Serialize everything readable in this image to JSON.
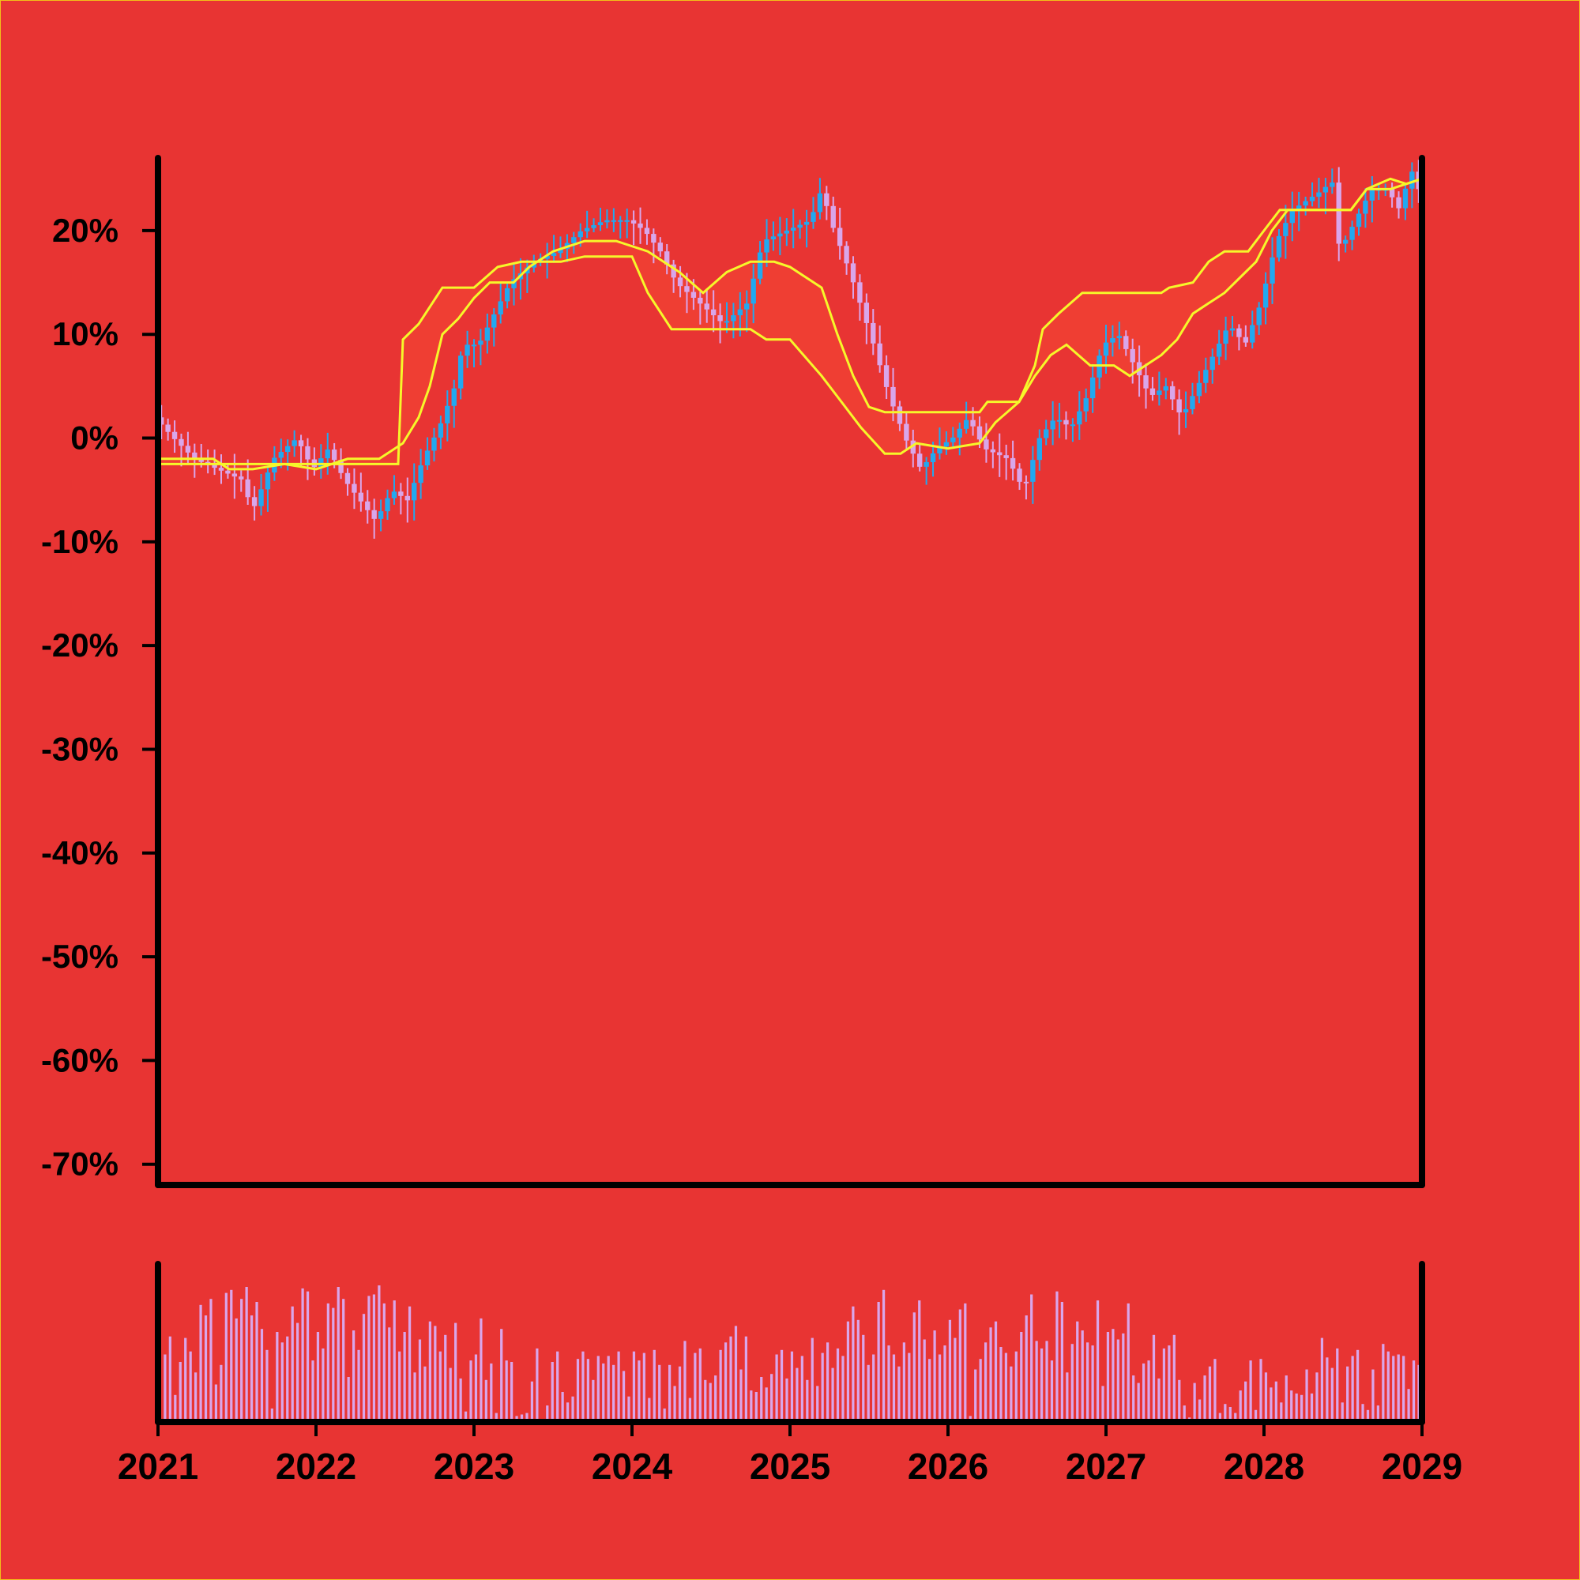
{
  "colors": {
    "background": "#e83433",
    "border": "#f2c118",
    "axis": "#000000",
    "candle_up": "#21a9f0",
    "candle_down": "#d9a6ea",
    "band_line": "#f6f72a",
    "band_fill": "#f03f33",
    "volume_bar": "#d9a6ea"
  },
  "chart_data": {
    "type": "candlestick",
    "title": "",
    "xlabel": "",
    "ylabel": "",
    "x_ticks": [
      "2021",
      "2022",
      "2023",
      "2024",
      "2025",
      "2026",
      "2027",
      "2028",
      "2029"
    ],
    "y_ticks": [
      "20%",
      "10%",
      "0%",
      "-10%",
      "-20%",
      "-30%",
      "-40%",
      "-50%",
      "-60%",
      "-70%"
    ],
    "x_range": [
      2021,
      2029
    ],
    "y_range_pct": [
      -72,
      27
    ],
    "price_close_pct": [
      [
        2021.0,
        2
      ],
      [
        2021.12,
        0
      ],
      [
        2021.25,
        -2
      ],
      [
        2021.4,
        -3
      ],
      [
        2021.55,
        -4
      ],
      [
        2021.62,
        -7
      ],
      [
        2021.75,
        -2
      ],
      [
        2021.9,
        0
      ],
      [
        2022.0,
        -3
      ],
      [
        2022.1,
        -1
      ],
      [
        2022.2,
        -4
      ],
      [
        2022.3,
        -6
      ],
      [
        2022.4,
        -8
      ],
      [
        2022.5,
        -5
      ],
      [
        2022.6,
        -6
      ],
      [
        2022.7,
        -2
      ],
      [
        2022.8,
        1
      ],
      [
        2022.9,
        5
      ],
      [
        2022.95,
        9
      ],
      [
        2023.05,
        9
      ],
      [
        2023.15,
        12
      ],
      [
        2023.25,
        15
      ],
      [
        2023.4,
        17
      ],
      [
        2023.55,
        18
      ],
      [
        2023.7,
        20
      ],
      [
        2023.85,
        21
      ],
      [
        2024.0,
        21
      ],
      [
        2024.1,
        20
      ],
      [
        2024.2,
        18
      ],
      [
        2024.3,
        15
      ],
      [
        2024.45,
        13
      ],
      [
        2024.6,
        11
      ],
      [
        2024.75,
        13
      ],
      [
        2024.85,
        19
      ],
      [
        2025.0,
        20
      ],
      [
        2025.15,
        21
      ],
      [
        2025.22,
        24
      ],
      [
        2025.3,
        20
      ],
      [
        2025.4,
        16
      ],
      [
        2025.55,
        9
      ],
      [
        2025.65,
        4
      ],
      [
        2025.75,
        0
      ],
      [
        2025.85,
        -3
      ],
      [
        2025.95,
        -1
      ],
      [
        2026.05,
        0
      ],
      [
        2026.15,
        2
      ],
      [
        2026.25,
        -1
      ],
      [
        2026.4,
        -2
      ],
      [
        2026.5,
        -5
      ],
      [
        2026.6,
        0
      ],
      [
        2026.7,
        2
      ],
      [
        2026.8,
        1
      ],
      [
        2026.9,
        4
      ],
      [
        2027.0,
        9
      ],
      [
        2027.1,
        10
      ],
      [
        2027.2,
        7
      ],
      [
        2027.3,
        4
      ],
      [
        2027.4,
        5
      ],
      [
        2027.5,
        2
      ],
      [
        2027.6,
        5
      ],
      [
        2027.7,
        8
      ],
      [
        2027.8,
        11
      ],
      [
        2027.9,
        9
      ],
      [
        2028.0,
        13
      ],
      [
        2028.1,
        19
      ],
      [
        2028.2,
        22
      ],
      [
        2028.3,
        23
      ],
      [
        2028.4,
        24
      ],
      [
        2028.45,
        25
      ],
      [
        2028.5,
        18
      ],
      [
        2028.6,
        21
      ],
      [
        2028.7,
        24
      ],
      [
        2028.8,
        24
      ],
      [
        2028.88,
        22
      ],
      [
        2028.95,
        26
      ],
      [
        2029.0,
        24
      ]
    ],
    "series": [
      {
        "values": [
          [
            2021.0,
            -2
          ],
          [
            2021.35,
            -2
          ],
          [
            2021.45,
            -3
          ],
          [
            2021.6,
            -3
          ],
          [
            2021.8,
            -2.5
          ],
          [
            2022.0,
            -3
          ],
          [
            2022.2,
            -2
          ],
          [
            2022.4,
            -2
          ],
          [
            2022.55,
            -0.5
          ],
          [
            2022.65,
            2
          ],
          [
            2022.72,
            5
          ],
          [
            2022.8,
            10
          ],
          [
            2022.9,
            11.5
          ],
          [
            2023.0,
            13.5
          ],
          [
            2023.1,
            15
          ],
          [
            2023.25,
            15
          ],
          [
            2023.35,
            16.5
          ],
          [
            2023.5,
            18
          ],
          [
            2023.7,
            19
          ],
          [
            2023.9,
            19
          ],
          [
            2024.1,
            18
          ],
          [
            2024.3,
            16
          ],
          [
            2024.45,
            14
          ],
          [
            2024.6,
            16
          ],
          [
            2024.75,
            17
          ],
          [
            2024.9,
            17
          ],
          [
            2025.0,
            16.5
          ],
          [
            2025.1,
            15.5
          ],
          [
            2025.2,
            14.5
          ],
          [
            2025.3,
            10
          ],
          [
            2025.4,
            6
          ],
          [
            2025.5,
            3
          ],
          [
            2025.6,
            2.5
          ],
          [
            2025.8,
            2.5
          ],
          [
            2026.0,
            2.5
          ],
          [
            2026.2,
            2.5
          ],
          [
            2026.25,
            3.5
          ],
          [
            2026.45,
            3.5
          ],
          [
            2026.55,
            7
          ],
          [
            2026.6,
            10.5
          ],
          [
            2026.7,
            12
          ],
          [
            2026.85,
            14
          ],
          [
            2027.0,
            14
          ],
          [
            2027.2,
            14
          ],
          [
            2027.35,
            14
          ],
          [
            2027.4,
            14.5
          ],
          [
            2027.55,
            15
          ],
          [
            2027.65,
            17
          ],
          [
            2027.75,
            18
          ],
          [
            2027.9,
            18
          ],
          [
            2028.0,
            20
          ],
          [
            2028.1,
            22
          ],
          [
            2028.2,
            22
          ],
          [
            2028.4,
            22
          ],
          [
            2028.55,
            22
          ],
          [
            2028.65,
            24
          ],
          [
            2028.8,
            24
          ],
          [
            2028.9,
            24.5
          ],
          [
            2029.0,
            25
          ]
        ]
      },
      {
        "values": [
          [
            2021.0,
            -2.5
          ],
          [
            2021.4,
            -2.5
          ],
          [
            2021.6,
            -2.5
          ],
          [
            2021.8,
            -2.5
          ],
          [
            2022.0,
            -2.5
          ],
          [
            2022.2,
            -2.5
          ],
          [
            2022.4,
            -2.5
          ],
          [
            2022.52,
            -2.5
          ],
          [
            2022.55,
            9.5
          ],
          [
            2022.65,
            11
          ],
          [
            2022.8,
            14.5
          ],
          [
            2023.0,
            14.5
          ],
          [
            2023.15,
            16.5
          ],
          [
            2023.3,
            17
          ],
          [
            2023.55,
            17
          ],
          [
            2023.7,
            17.5
          ],
          [
            2023.9,
            17.5
          ],
          [
            2024.0,
            17.5
          ],
          [
            2024.1,
            14
          ],
          [
            2024.25,
            10.5
          ],
          [
            2024.5,
            10.5
          ],
          [
            2024.75,
            10.5
          ],
          [
            2024.85,
            9.5
          ],
          [
            2025.0,
            9.5
          ],
          [
            2025.2,
            6
          ],
          [
            2025.3,
            4
          ],
          [
            2025.45,
            1
          ],
          [
            2025.6,
            -1.5
          ],
          [
            2025.7,
            -1.5
          ],
          [
            2025.8,
            -0.5
          ],
          [
            2026.0,
            -1
          ],
          [
            2026.2,
            -0.5
          ],
          [
            2026.3,
            1.5
          ],
          [
            2026.45,
            3.5
          ],
          [
            2026.55,
            6
          ],
          [
            2026.65,
            8
          ],
          [
            2026.75,
            9
          ],
          [
            2026.9,
            7
          ],
          [
            2027.05,
            7
          ],
          [
            2027.15,
            6
          ],
          [
            2027.25,
            7
          ],
          [
            2027.35,
            8
          ],
          [
            2027.45,
            9.5
          ],
          [
            2027.55,
            12
          ],
          [
            2027.65,
            13
          ],
          [
            2027.75,
            14
          ],
          [
            2027.85,
            15.5
          ],
          [
            2027.95,
            17
          ],
          [
            2028.05,
            20
          ],
          [
            2028.15,
            22
          ],
          [
            2028.3,
            22
          ],
          [
            2028.45,
            22
          ],
          [
            2028.55,
            22
          ],
          [
            2028.65,
            24
          ],
          [
            2028.8,
            25
          ],
          [
            2028.9,
            24.5
          ],
          [
            2029.0,
            25
          ]
        ]
      }
    ],
    "volume": [
      0.45,
      0.57,
      0.18,
      0.4,
      0.56,
      0.47,
      0.33,
      0.78,
      0.71,
      0.82,
      0.25,
      0.38,
      0.86,
      0.88,
      0.69,
      0.82,
      0.9,
      0.71,
      0.8,
      0.62,
      0.48,
      0.09,
      0.6,
      0.53,
      0.57,
      0.77,
      0.66,
      0.89,
      0.87,
      0.41,
      0.6,
      0.49,
      0.79,
      0.76,
      0.9,
      0.82,
      0.3,
      0.61,
      0.48,
      0.72,
      0.84,
      0.85,
      0.91,
      0.79,
      0.63,
      0.81,
      0.47,
      0.6,
      0.77,
      0.33,
      0.55,
      0.37,
      0.67,
      0.64,
      0.47,
      0.58,
      0.36,
      0.66,
      0.29,
      0.07,
      0.41,
      0.45,
      0.69,
      0.28,
      0.39,
      0.06,
      0.62,
      0.41,
      0.4,
      0.04,
      0.05,
      0.06,
      0.27,
      0.49,
      0.02,
      0.11,
      0.4,
      0.47,
      0.2,
      0.13,
      0.17,
      0.42,
      0.47,
      0.42,
      0.28,
      0.44,
      0.39,
      0.44,
      0.38,
      0.47,
      0.34,
      0.17,
      0.47,
      0.41,
      0.46,
      0.16,
      0.48,
      0.38,
      0.09,
      0.38,
      0.24,
      0.37,
      0.54,
      0.16,
      0.46,
      0.49,
      0.28,
      0.26,
      0.31,
      0.48,
      0.53,
      0.57,
      0.64,
      0.35,
      0.57,
      0.21,
      0.2,
      0.3,
      0.23,
      0.32,
      0.45,
      0.48,
      0.29,
      0.47,
      0.36,
      0.44,
      0.28,
      0.56,
      0.24,
      0.46,
      0.53,
      0.36,
      0.49,
      0.44,
      0.67,
      0.77,
      0.68,
      0.58,
      0.38,
      0.45,
      0.8,
      0.88,
      0.51,
      0.45,
      0.37,
      0.53,
      0.46,
      0.73,
      0.81,
      0.55,
      0.42,
      0.61,
      0.45,
      0.51,
      0.68,
      0.56,
      0.75,
      0.79,
      0.04,
      0.35,
      0.42,
      0.53,
      0.63,
      0.67,
      0.5,
      0.46,
      0.37,
      0.47,
      0.6,
      0.71,
      0.85,
      0.54,
      0.49,
      0.54,
      0.41,
      0.87,
      0.8,
      0.33,
      0.52,
      0.67,
      0.61,
      0.53,
      0.51,
      0.81,
      0.24,
      0.6,
      0.62,
      0.55,
      0.59,
      0.79,
      0.31,
      0.26,
      0.39,
      0.41,
      0.58,
      0.29,
      0.49,
      0.51,
      0.58,
      0.28,
      0.11,
      0.03,
      0.26,
      0.15,
      0.31,
      0.37,
      0.42,
      0.06,
      0.12,
      0.1,
      0.06,
      0.21,
      0.27,
      0.41,
      0.08,
      0.42,
      0.33,
      0.23,
      0.27,
      0.13,
      0.31,
      0.21,
      0.19,
      0.18,
      0.35,
      0.19,
      0.33,
      0.56,
      0.43,
      0.36,
      0.49,
      0.13,
      0.37,
      0.44,
      0.48,
      0.12,
      0.08,
      0.35,
      0.11,
      0.52,
      0.47,
      0.44,
      0.45,
      0.44,
      0.22,
      0.41,
      0.38,
      0.21
    ]
  }
}
